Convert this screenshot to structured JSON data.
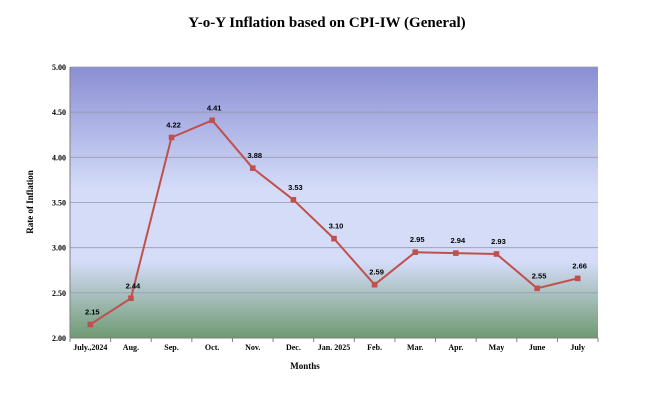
{
  "chart_data": {
    "type": "line",
    "title": "Y-o-Y Inflation based on CPI-IW (General)",
    "xlabel": "Months",
    "ylabel": "Rate of Inflation",
    "categories": [
      "July.,2024",
      "Aug.",
      "Sep.",
      "Oct.",
      "Nov.",
      "Dec.",
      "Jan. 2025",
      "Feb.",
      "Mar.",
      "Apr.",
      "May",
      "June",
      "July"
    ],
    "series": [
      {
        "values": [
          2.15,
          2.44,
          4.22,
          4.41,
          3.88,
          3.53,
          3.1,
          2.59,
          2.95,
          2.94,
          2.93,
          2.55,
          2.66
        ]
      }
    ],
    "data_labels": [
      "2.15",
      "2.44",
      "4.22",
      "4.41",
      "3.88",
      "3.53",
      "3.10",
      "2.59",
      "2.95",
      "2.94",
      "2.93",
      "2.55",
      "2.66"
    ],
    "ylim": [
      2.0,
      5.0
    ],
    "yticks": [
      "2.00",
      "2.50",
      "3.00",
      "3.50",
      "4.00",
      "4.50",
      "5.00"
    ],
    "ytick_values": [
      2.0,
      2.5,
      3.0,
      3.5,
      4.0,
      4.5,
      5.0
    ],
    "grid": true,
    "legend": "none",
    "colors": {
      "line": "#c0504d",
      "marker": "#c0504d",
      "gridline": "#9a9ab0",
      "plot_top": "#8a8ed4",
      "plot_mid": "#d4dcf8",
      "plot_bottom": "#6f9a72"
    }
  }
}
